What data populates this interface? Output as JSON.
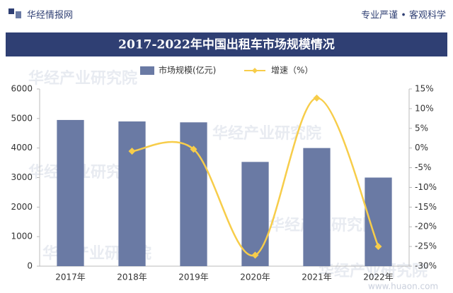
{
  "header": {
    "brand": "华经情报网",
    "slogan": "专业严谨 • 客观科学"
  },
  "watermark": "华经产业研究院",
  "footer": "www.huaon.com",
  "chart_data": {
    "type": "bar",
    "title": "2017-2022年中国出租车市场规模情况",
    "categories": [
      "2017年",
      "2018年",
      "2019年",
      "2020年",
      "2021年",
      "2022年"
    ],
    "series": [
      {
        "name": "市场规模(亿元)",
        "type": "bar",
        "color": "#6a7aa4",
        "values": [
          4950,
          4900,
          4870,
          3530,
          4000,
          3000
        ]
      },
      {
        "name": "增速（%）",
        "type": "line",
        "axis": "y2",
        "color": "#f7cd4a",
        "values": [
          null,
          -0.8,
          -0.3,
          -27.2,
          12.7,
          -25
        ]
      }
    ],
    "ylim": [
      0,
      6000
    ],
    "yticks": [
      0,
      1000,
      2000,
      3000,
      4000,
      5000,
      6000
    ],
    "y2lim": [
      -30,
      15
    ],
    "y2ticks": [
      {
        "value": -30,
        "label": "-30%"
      },
      {
        "value": -25,
        "label": "-25%"
      },
      {
        "value": -20,
        "label": "-20%"
      },
      {
        "value": -15,
        "label": "-15%"
      },
      {
        "value": -10,
        "label": "-10%"
      },
      {
        "value": -5,
        "label": "-5%"
      },
      {
        "value": 0,
        "label": "0%"
      },
      {
        "value": 5,
        "label": "5%"
      },
      {
        "value": 10,
        "label": "10%"
      },
      {
        "value": 15,
        "label": "15%"
      }
    ]
  }
}
